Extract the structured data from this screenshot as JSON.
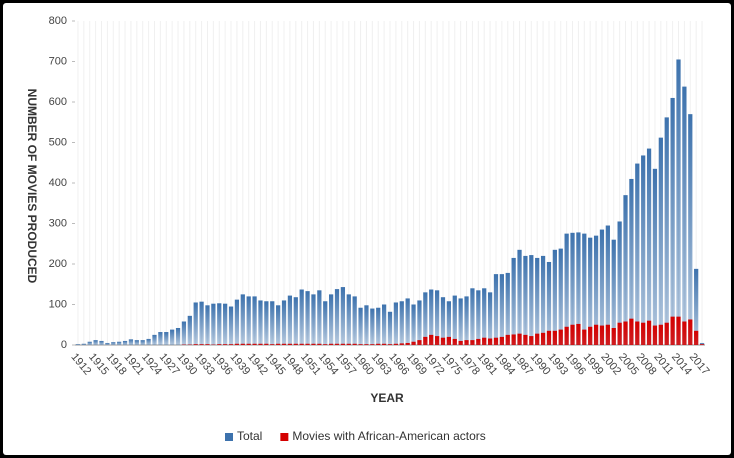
{
  "chart_data": {
    "type": "bar",
    "x_label": "YEAR",
    "y_label": "NUMBER OF MOVIES PRODUCED",
    "categories": [
      "1912",
      null,
      null,
      "1915",
      null,
      null,
      "1918",
      null,
      null,
      "1921",
      null,
      null,
      "1924",
      null,
      null,
      "1927",
      null,
      null,
      "1930",
      null,
      null,
      "1933",
      null,
      null,
      "1936",
      null,
      null,
      "1939",
      null,
      null,
      "1942",
      null,
      null,
      "1945",
      null,
      null,
      "1948",
      null,
      null,
      "1951",
      null,
      null,
      "1954",
      null,
      null,
      "1957",
      null,
      null,
      "1960",
      null,
      null,
      "1963",
      null,
      null,
      "1966",
      null,
      null,
      "1969",
      null,
      null,
      "1972",
      null,
      null,
      "1975",
      null,
      null,
      "1978",
      null,
      null,
      "1981",
      null,
      null,
      "1984",
      null,
      null,
      "1987",
      null,
      null,
      "1990",
      null,
      null,
      "1993",
      null,
      null,
      "1996",
      null,
      null,
      "1999",
      null,
      null,
      "2002",
      null,
      null,
      "2005",
      null,
      null,
      "2008",
      null,
      null,
      "2011",
      null,
      null,
      "2014",
      null,
      null,
      "2017",
      null
    ],
    "series": [
      {
        "name": "Total",
        "color": "#3d72ad",
        "values": [
          2,
          3,
          8,
          12,
          10,
          5,
          7,
          8,
          10,
          14,
          12,
          12,
          15,
          25,
          32,
          32,
          38,
          42,
          58,
          72,
          105,
          107,
          98,
          102,
          103,
          102,
          95,
          112,
          125,
          120,
          120,
          110,
          108,
          108,
          98,
          110,
          122,
          118,
          137,
          133,
          125,
          135,
          108,
          125,
          138,
          143,
          125,
          120,
          92,
          98,
          90,
          92,
          100,
          82,
          105,
          108,
          115,
          100,
          110,
          130,
          137,
          135,
          118,
          108,
          122,
          115,
          120,
          140,
          135,
          140,
          130,
          175,
          175,
          178,
          215,
          235,
          220,
          222,
          215,
          220,
          205,
          235,
          238,
          275,
          277,
          278,
          275,
          265,
          270,
          285,
          295,
          260,
          305,
          370,
          410,
          448,
          468,
          485,
          435,
          512,
          562,
          610,
          705,
          638,
          570,
          188,
          5
        ]
      },
      {
        "name": "Movies with African-American actors",
        "color": "#d40000",
        "values": [
          0,
          0,
          0,
          0,
          0,
          0,
          0,
          0,
          0,
          0,
          0,
          0,
          0,
          0,
          0,
          0,
          0,
          0,
          1,
          1,
          2,
          2,
          2,
          1,
          2,
          2,
          2,
          3,
          3,
          3,
          3,
          3,
          3,
          2,
          3,
          3,
          3,
          3,
          3,
          3,
          3,
          3,
          2,
          3,
          3,
          3,
          3,
          3,
          2,
          2,
          2,
          3,
          3,
          2,
          3,
          4,
          5,
          8,
          12,
          20,
          25,
          22,
          18,
          20,
          15,
          10,
          12,
          12,
          15,
          18,
          16,
          18,
          20,
          25,
          26,
          28,
          25,
          22,
          28,
          30,
          35,
          35,
          38,
          45,
          50,
          52,
          38,
          45,
          50,
          48,
          50,
          42,
          55,
          58,
          65,
          58,
          55,
          60,
          48,
          50,
          55,
          70,
          70,
          58,
          63,
          35,
          2
        ]
      }
    ],
    "ylim": [
      0,
      800
    ],
    "yticks": [
      0,
      100,
      200,
      300,
      400,
      500,
      600,
      700,
      800
    ],
    "grid": true,
    "legend": "bottom"
  }
}
